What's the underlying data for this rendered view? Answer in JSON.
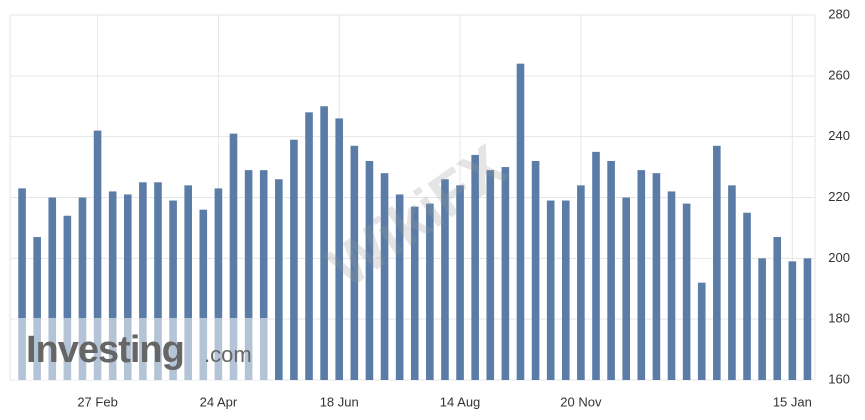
{
  "chart_data": {
    "type": "bar",
    "categories": [
      null,
      null,
      null,
      null,
      null,
      "27 Feb",
      null,
      null,
      null,
      null,
      null,
      null,
      null,
      "24 Apr",
      null,
      null,
      null,
      null,
      null,
      null,
      null,
      "18 Jun",
      null,
      null,
      null,
      null,
      null,
      null,
      null,
      "14 Aug",
      null,
      null,
      null,
      null,
      null,
      null,
      null,
      "20 Nov",
      null,
      null,
      null,
      null,
      null,
      null,
      null,
      null,
      null,
      null,
      null,
      null,
      null,
      "15 Jan",
      null
    ],
    "values": [
      223,
      207,
      220,
      214,
      220,
      242,
      222,
      221,
      225,
      225,
      219,
      224,
      216,
      223,
      241,
      229,
      229,
      226,
      239,
      248,
      250,
      246,
      237,
      232,
      228,
      221,
      217,
      218,
      226,
      224,
      234,
      229,
      230,
      264,
      232,
      219,
      219,
      224,
      235,
      232,
      220,
      229,
      228,
      222,
      218,
      192,
      237,
      224,
      215,
      200,
      207,
      199,
      200
    ],
    "color": "#5a7ca6",
    "ylim": [
      160,
      280
    ],
    "yticks": [
      160,
      180,
      200,
      220,
      240,
      260,
      280
    ],
    "grid": true
  },
  "watermark": {
    "name": "Investing",
    "suffix": ".com",
    "overlay": "WikiFX"
  }
}
